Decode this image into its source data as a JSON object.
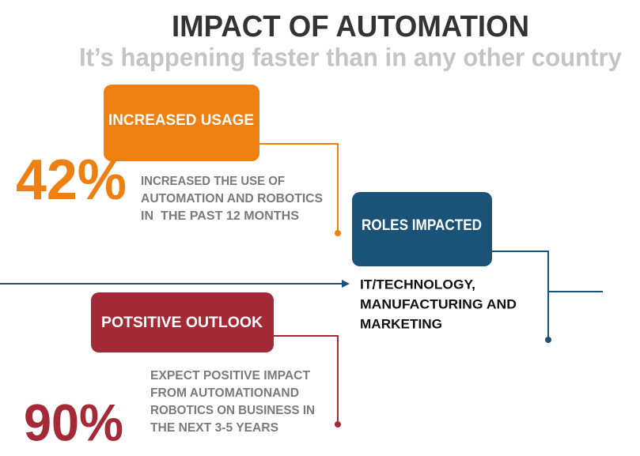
{
  "header": {
    "title": "IMPACT OF AUTOMATION",
    "subtitle": "It’s happening faster than in any other country"
  },
  "cards": [
    {
      "label": "INCREASED USAGE",
      "stat": "42%",
      "description": [
        "INCREASED THE USE OF",
        "AUTOMATION AND ROBOTICS",
        "IN  THE PAST 12 MONTHS"
      ]
    },
    {
      "label": "ROLES IMPACTED",
      "description": [
        "IT/TECHNOLOGY,",
        "MANUFACTURING AND",
        "MARKETING"
      ]
    },
    {
      "label": "POTSITIVE OUTLOOK",
      "stat": "90%",
      "description": [
        "EXPECT POSITIVE IMPACT",
        "FROM AUTOMATIONAND",
        "ROBOTICS ON BUSINESS IN",
        "THE NEXT 3-5 YEARS"
      ]
    }
  ]
}
